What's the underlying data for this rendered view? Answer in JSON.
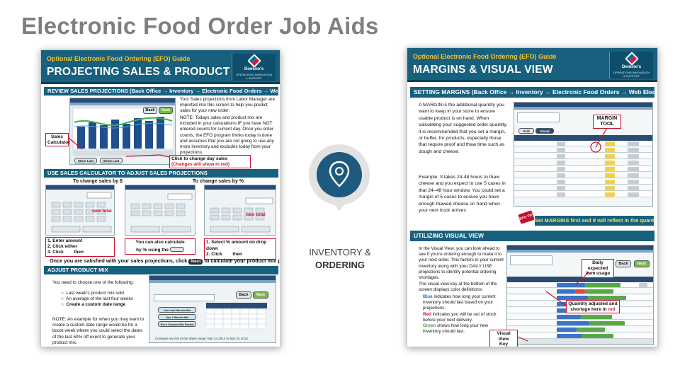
{
  "slide": {
    "title": "Electronic Food Order Job Aids"
  },
  "center": {
    "icon": "location-pin-icon",
    "line1": "INVENTORY &",
    "line2": "ORDERING"
  },
  "left_doc": {
    "header_sub": "Optional Electronic Food Ordering (EFO) Guide",
    "header_main": "PROJECTING SALES & PRODUCT MIX",
    "logo_brand": "Domino's",
    "logo_dept_1": "OPERATIONS INNOVATION",
    "logo_dept_2": "& SUPPORT",
    "bar1": "REVIEW SALES PROJECTIONS  (Back Office → Inventory → Electronic Food Orders → Web Electronic Food Ordering)",
    "review_text": "Your Sales projections from Labor Manager are imported into this screen to help you predict sales for your new order.",
    "review_note": "NOTE: Todays sales and product mix are included in your calculations IF you have NOT entered counts for current day. Once you enter counts, the EFO program thinks today is done and assumes that you are not going to use any more inventory and excludes today from your projections.",
    "callout_sales_calc": "Sales Calculator",
    "callout_change_day_1": "Click to change day sales",
    "callout_change_day_2": "(Changes will show in red)",
    "bar2": "USE SALES CALCULATOR TO ADJUST SALES PROJECTIONS",
    "change_dollar": "To change sales by $",
    "change_percent": "To change sales by %",
    "new_total": "new total",
    "step1_a": "1. Enter amount",
    "step1_b": "2. Click either",
    "step1_c": "3. Click",
    "step1_then": "then",
    "step2_a": "You can also calculate",
    "step2_b": "by % using the",
    "step3_a": "1. Select % amount on drop down",
    "step3_b": "2. Click",
    "step3_then": "then",
    "satisfied": "Once you are satisfied with your sales projections, click",
    "satisfied_tail": "to calculate your product mix projection",
    "next_label": "Next",
    "back_label": "Back",
    "bar3": "ADJUST PRODUCT MIX",
    "choose": "You need to choose one of the following:",
    "opt1": "Last week's product mix sold",
    "opt2": "An average of the last four weeks",
    "opt3": "Create a custom date range",
    "custom_note": "NOTE: An example for when you may want to create a custom date range would be for a boost week where you could select the dates of the last 50% off event to generate your product mix.",
    "shot_footer": "Compare my mix to the dates range: Mar 24 2014 to Mar 24 2014",
    "shot_btn1": "Use Last Weeks Mix",
    "shot_btn2": "Use 4 Weeks Mix",
    "shot_btn3": "Set a Custom Mix Period",
    "shot_btn_a": "Store Last Year",
    "shot_btn_b": "Show Last Year"
  },
  "right_doc": {
    "header_sub": "Optional Electronic Food Ordering (EFO) Guide",
    "header_main": "MARGINS & VISUAL VIEW",
    "logo_brand": "Domino's",
    "logo_dept_1": "OPERATIONS INNOVATION",
    "logo_dept_2": "& SUPPORT",
    "bar1": "SETTING MARGINS  (Back Office → Inventory → Electronic Food Orders → Web Electronic Food Ordering)",
    "margin_text": "A MARGIN is the additional quantity you want to keep in your store to ensure usable product is on hand. When calculating your suggested order quantity, it is recommended that you set a margin, or buffer, for products, especially those that require proof and thaw time such as dough and cheese.",
    "example_text": "Example: It takes 24-48 hours to thaw cheese and you expect to use 5 cases in that 24–48 hour window. You could set a margin of 5 cases to ensure you have enough thawed cheese on hand when your next truck arrives",
    "margin_tool_1": "MARGIN",
    "margin_tool_2": "TOOL",
    "tab_grid": "Grid View",
    "tab_visual": "Visual View",
    "efo_tip": "EFO TIP",
    "tip_text": "Set MARGINS first and it will reflect in the quantity",
    "bar2": "UTILIZING VISUAL VIEW",
    "visual_text": "In the Visual View, you can look ahead to see if you're ordering enough to make it to your next order. This factors in your current inventory along with your DAILY USE projections to identify potential ordering shortages.",
    "key_intro": "The visual view key at the bottom of the screen displays color definitions:",
    "key_blue_word": "Blue",
    "key_blue": "indicates how long your current inventory should last based on your projections.",
    "key_red_word": "Red",
    "key_red": "indicates you will be out of stock before your next delivery.",
    "key_green_word": "Green",
    "key_green": "shows how long your new inventory should last.",
    "callout_daily_1": "Daily expected",
    "callout_daily_2": "item usage",
    "callout_qty_1": "Quantity adjusted and",
    "callout_qty_2": "shortage here in",
    "callout_qty_red": "red",
    "callout_key_1": "Visual View",
    "callout_key_2": "Key",
    "back_label": "Back",
    "next_label": "Next"
  },
  "colors": {
    "title_gray": "#7f7f7f",
    "doc_blue": "#17607e",
    "doc_yellow": "#f6c230",
    "callout_red": "#c8102e",
    "pin_blue": "#1d5a7d"
  }
}
